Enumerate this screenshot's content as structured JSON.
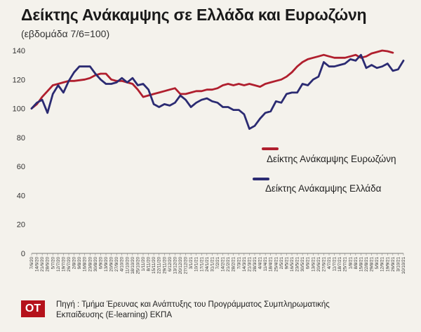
{
  "header": {
    "title": "Δείκτης Ανάκαμψης σε Ελλάδα και Ευρωζώνη",
    "subtitle": "(εβδομάδα 7/6=100)"
  },
  "footer": {
    "logo": "ΟΤ",
    "source": "Πηγή : Τμήμα Έρευνας και Ανάπτυξης του Προγράμματος Συμπληρωματικής Εκπαίδευσης (E-learning) ΕΚΠΑ"
  },
  "chart_data": {
    "type": "line",
    "title": "Δείκτης Ανάκαμψης σε Ελλάδα και Ευρωζώνη",
    "subtitle": "(εβδομάδα 7/6=100)",
    "xlabel": "",
    "ylabel": "",
    "ylim": [
      0,
      140
    ],
    "yticks": [
      0,
      20,
      40,
      60,
      80,
      100,
      120,
      140
    ],
    "grid": false,
    "legend_position": "right-middle",
    "x": [
      "7/6/20",
      "14/6/20",
      "21/6/20",
      "28/6/20",
      "5/7/20",
      "12/7/20",
      "19/7/20",
      "26/7/20",
      "2/8/20",
      "9/8/20",
      "16/8/20",
      "23/8/20",
      "30/8/20",
      "6/9/20",
      "13/9/20",
      "20/9/20",
      "27/9/20",
      "4/10/20",
      "11/10/20",
      "18/10/20",
      "25/10/20",
      "1/11/20",
      "8/11/20",
      "15/11/20",
      "22/11/20",
      "29/11/20",
      "6/12/20",
      "13/12/20",
      "20/12/20",
      "27/12/20",
      "3/1/21",
      "10/1/21",
      "17/1/21",
      "24/1/21",
      "31/1/21",
      "7/2/21",
      "14/2/21",
      "21/2/21",
      "28/2/21",
      "7/3/21",
      "14/3/21",
      "21/3/21",
      "28/3/21",
      "4/4/21",
      "11/4/21",
      "18/4/21",
      "25/4/21",
      "2/5/21",
      "9/5/21",
      "16/5/21",
      "23/5/21",
      "30/5/21",
      "6/6/21",
      "13/6/21",
      "20/6/21",
      "27/6/21",
      "4/7/21",
      "11/7/21",
      "18/7/21",
      "25/7/21",
      "1/8/21",
      "8/8/21",
      "15/8/21",
      "22/8/21",
      "29/8/21",
      "5/9/21",
      "12/9/21",
      "19/9/21",
      "26/9/21",
      "3/10/21",
      "10/10/21"
    ],
    "series": [
      {
        "name": "Δείκτης Ανάκαμψης Ευρωζώνη",
        "color": "#b01f2e",
        "values": [
          100,
          103,
          108,
          112,
          116,
          117,
          118,
          119,
          119,
          119.5,
          120,
          121,
          123,
          124,
          124,
          120,
          119,
          119,
          118,
          117,
          113,
          108,
          109,
          110,
          111,
          112,
          113,
          114,
          110,
          110,
          111,
          112,
          112,
          113,
          113,
          114,
          116,
          117,
          116,
          117,
          116,
          117,
          116,
          115,
          117,
          118,
          119,
          120,
          122,
          125,
          129,
          132,
          134,
          135,
          136,
          137,
          136,
          135,
          135,
          135,
          136,
          137,
          135,
          136,
          138,
          139,
          140,
          139.5,
          138.5,
          null,
          null
        ],
        "value_count": 69
      },
      {
        "name": "Δείκτης Ανάκαμψης Ελλάδα",
        "color": "#2b2b72",
        "values": [
          100,
          104,
          106,
          97,
          110,
          116,
          111,
          119,
          125,
          129,
          129,
          129,
          124,
          120,
          117,
          117,
          118,
          121,
          118,
          121,
          116,
          117,
          113,
          103,
          101,
          103,
          102,
          104,
          109,
          106,
          101,
          104,
          106,
          107,
          105,
          104,
          101,
          101,
          99,
          99,
          96,
          86,
          88,
          93,
          97,
          98,
          105,
          104,
          110,
          111,
          111,
          117,
          116,
          120,
          122,
          132,
          129,
          129,
          130,
          131,
          134,
          133,
          137,
          128,
          130,
          128,
          129,
          131,
          126,
          127,
          133
        ]
      }
    ]
  }
}
